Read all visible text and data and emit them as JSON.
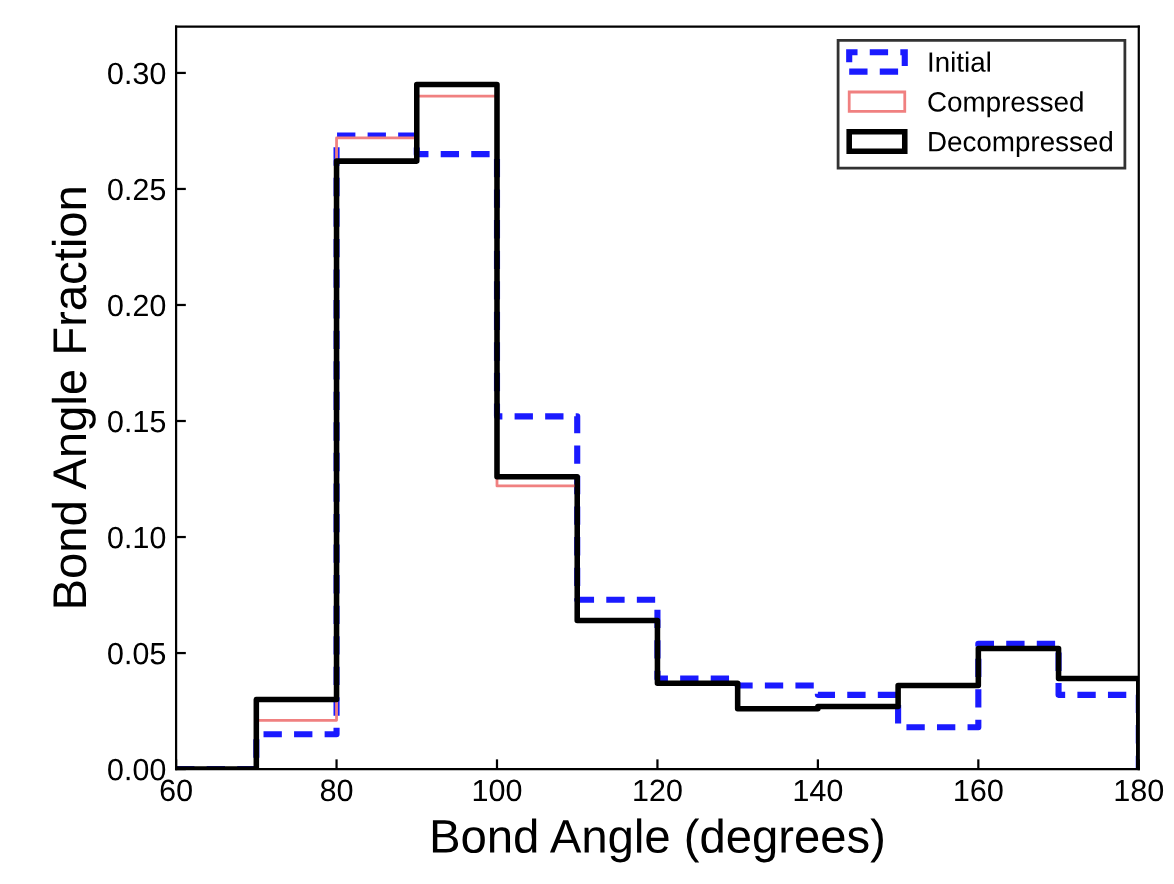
{
  "chart_data": {
    "type": "histogram",
    "xlabel": "Bond Angle (degrees)",
    "ylabel": "Bond Angle Fraction",
    "bins": [
      60,
      70,
      80,
      90,
      100,
      110,
      120,
      130,
      140,
      150,
      160,
      170,
      180
    ],
    "series": [
      {
        "name": "Initial",
        "color": "#1a1aff",
        "line_style": "dashed",
        "values": [
          0,
          0.015,
          0.273,
          0.265,
          0.152,
          0.073,
          0.039,
          0.036,
          0.032,
          0.018,
          0.054,
          0.032
        ]
      },
      {
        "name": "Compressed",
        "color": "#f08080",
        "line_style": "solid",
        "values": [
          0,
          0.021,
          0.272,
          0.29,
          0.122,
          0.064,
          0.037,
          0.026,
          0.027,
          0.036,
          0.052,
          0.039
        ]
      },
      {
        "name": "Decompressed",
        "color": "#000000",
        "line_style": "solid",
        "values": [
          0,
          0.03,
          0.262,
          0.295,
          0.126,
          0.064,
          0.037,
          0.026,
          0.027,
          0.036,
          0.052,
          0.039
        ]
      }
    ],
    "xlim": [
      60,
      180
    ],
    "xticks": [
      60,
      80,
      100,
      120,
      140,
      160,
      180
    ],
    "ylim": [
      0,
      0.32
    ],
    "yticks": [
      {
        "value": 0,
        "label": "0.00"
      },
      {
        "value": 0.05,
        "label": "0.05"
      },
      {
        "value": 0.1,
        "label": "0.10"
      },
      {
        "value": 0.15,
        "label": "0.15"
      },
      {
        "value": 0.2,
        "label": "0.20"
      },
      {
        "value": 0.25,
        "label": "0.25"
      },
      {
        "value": 0.3,
        "label": "0.30"
      }
    ],
    "grid": false,
    "legend": "top right"
  }
}
